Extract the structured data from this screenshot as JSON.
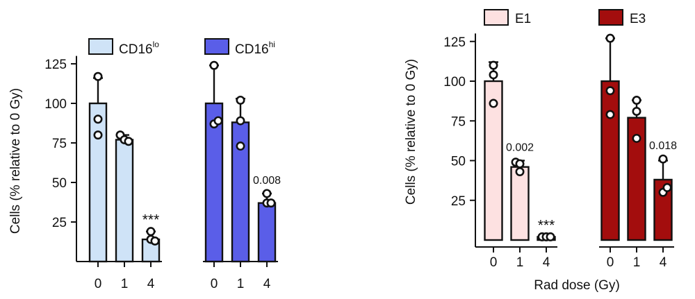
{
  "chart_data": [
    {
      "type": "bar",
      "ylabel": "Cells (% relative to 0 Gy)",
      "xlabel": "",
      "ylim": [
        0,
        130
      ],
      "yticks": [
        25,
        50,
        75,
        100,
        125
      ],
      "legend_position": "top",
      "series": [
        {
          "name": "CD16",
          "name_sup": "lo",
          "color": "#cfe3f7",
          "categories": [
            "0",
            "1",
            "4"
          ],
          "values": [
            100,
            77,
            14
          ],
          "error_upper": [
            116,
            80,
            19
          ],
          "points": [
            [
              117,
              90,
              80
            ],
            [
              80,
              77,
              76
            ],
            [
              19,
              14,
              13
            ]
          ],
          "annotations": [
            "",
            "",
            "***"
          ]
        },
        {
          "name": "CD16",
          "name_sup": "hi",
          "color": "#5a5ee8",
          "categories": [
            "0",
            "1",
            "4"
          ],
          "values": [
            100,
            88,
            37
          ],
          "error_upper": [
            124,
            103,
            43
          ],
          "points": [
            [
              124,
              87,
              89
            ],
            [
              102,
              89,
              73
            ],
            [
              43,
              37,
              37
            ]
          ],
          "annotations": [
            "",
            "",
            "0.008"
          ]
        }
      ]
    },
    {
      "type": "bar",
      "ylabel": "Cells (% relative to 0 Gy)",
      "xlabel": "Rad dose (Gy)",
      "ylim": [
        0,
        130
      ],
      "yticks": [
        25,
        50,
        75,
        100,
        125
      ],
      "legend_position": "top",
      "series": [
        {
          "name": "E1",
          "name_sup": "",
          "color": "#fde1e1",
          "categories": [
            "0",
            "1",
            "4"
          ],
          "values": [
            100,
            46,
            2
          ],
          "error_upper": [
            112,
            50,
            2
          ],
          "points": [
            [
              110,
              104,
              86
            ],
            [
              49,
              48,
              43
            ],
            [
              2,
              2,
              2
            ]
          ],
          "annotations": [
            "",
            "0.002",
            "***"
          ]
        },
        {
          "name": "E3",
          "name_sup": "",
          "color": "#a30d0d",
          "categories": [
            "0",
            "1",
            "4"
          ],
          "values": [
            100,
            77,
            38
          ],
          "error_upper": [
            127,
            88,
            50
          ],
          "points": [
            [
              127,
              94,
              79
            ],
            [
              88,
              81,
              64
            ],
            [
              51,
              30,
              33
            ]
          ],
          "annotations": [
            "",
            "",
            "0.018"
          ]
        }
      ]
    }
  ]
}
